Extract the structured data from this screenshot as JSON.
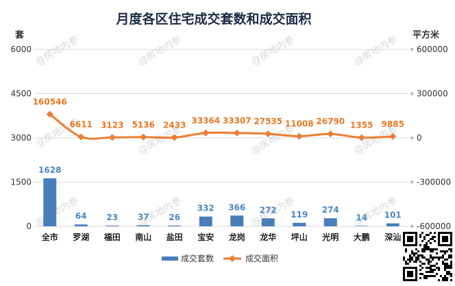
{
  "chart_data": {
    "type": "bar",
    "title": "月度各区住宅成交套数和成交面积",
    "categories": [
      "全市",
      "罗湖",
      "福田",
      "南山",
      "盐田",
      "宝安",
      "龙岗",
      "龙华",
      "坪山",
      "光明",
      "大鹏",
      "深汕"
    ],
    "left_axis": {
      "unit": "套",
      "ticks": [
        "0",
        "1500",
        "3000",
        "4500",
        "6000"
      ],
      "range": [
        0,
        6000
      ]
    },
    "right_axis": {
      "unit": "平方米",
      "ticks": [
        "-600000",
        "-300000",
        "0",
        "300000",
        "600000"
      ],
      "range": [
        -600000,
        600000
      ]
    },
    "series": [
      {
        "name": "成交套数",
        "type": "bar",
        "axis": "left",
        "values": [
          1628,
          64,
          23,
          37,
          26,
          332,
          366,
          272,
          119,
          274,
          14,
          101
        ],
        "labels": [
          "1628",
          "64",
          "23",
          "37",
          "26",
          "332",
          "366",
          "272",
          "119",
          "274",
          "14",
          "101"
        ]
      },
      {
        "name": "成交面积",
        "type": "line",
        "axis": "right",
        "values": [
          160546,
          6611,
          3123,
          5136,
          2433,
          33364,
          33307,
          27535,
          11008,
          26790,
          1355,
          9885
        ],
        "labels": [
          "160546",
          "6611",
          "3123",
          "5136",
          "2433",
          "33364",
          "33307",
          "27535",
          "11008",
          "26790",
          "1355",
          "9885"
        ]
      }
    ],
    "grid": true,
    "legend_position": "bottom",
    "colors": {
      "bar": "#4a7ebb",
      "line": "#ed7d31",
      "bar_label": "#4a86c5",
      "line_label": "#e87722"
    }
  },
  "watermark": "@房地内参"
}
